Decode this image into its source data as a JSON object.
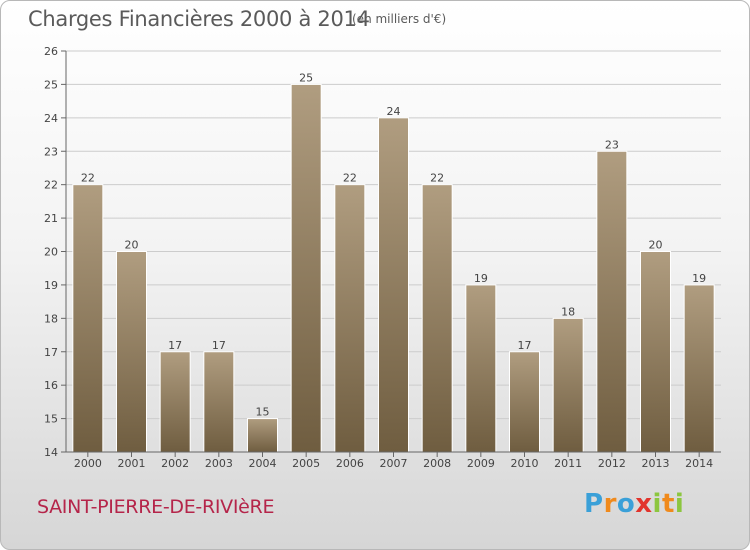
{
  "title": "Charges Financières 2000 à 2014",
  "subtitle": "(en milliers d'€)",
  "town": "SAINT-PIERRE-DE-RIVIèRE",
  "logo": {
    "letters": [
      "P",
      "r",
      "o",
      "x",
      "i",
      "t",
      "i"
    ],
    "colors": [
      "#3aa0d8",
      "#f08a1c",
      "#3aa0d8",
      "#e2342c",
      "#8cc63f",
      "#f08a1c",
      "#8cc63f"
    ]
  },
  "colors": {
    "bar_top": "#b09d80",
    "bar_bottom": "#6f5d40",
    "grid": "#cccccc",
    "text": "#444444"
  },
  "chart_data": {
    "type": "bar",
    "categories": [
      "2000",
      "2001",
      "2002",
      "2003",
      "2004",
      "2005",
      "2006",
      "2007",
      "2008",
      "2009",
      "2010",
      "2011",
      "2012",
      "2013",
      "2014"
    ],
    "values": [
      22,
      20,
      17,
      17,
      15,
      25,
      22,
      24,
      22,
      19,
      17,
      18,
      23,
      20,
      19
    ],
    "value_labels": [
      "22",
      "20",
      "17",
      "17",
      "15",
      "25",
      "22",
      "24",
      "22",
      "19",
      "17",
      "18",
      "23",
      "20",
      "19"
    ],
    "yticks": [
      "14",
      "15",
      "16",
      "17",
      "18",
      "19",
      "20",
      "21",
      "22",
      "23",
      "24",
      "25",
      "26"
    ],
    "ylim": [
      14,
      26
    ],
    "grid": true,
    "title": "Charges Financières 2000 à 2014",
    "xlabel": "",
    "ylabel": ""
  }
}
